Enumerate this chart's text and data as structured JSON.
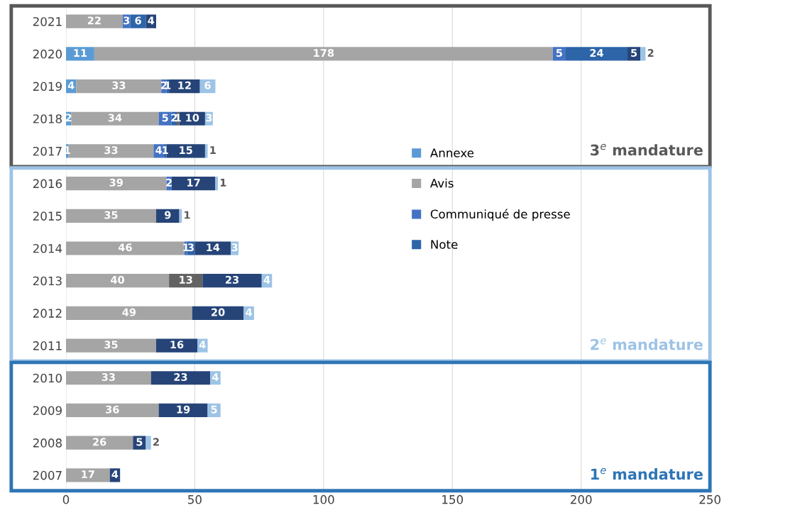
{
  "chart_data": {
    "type": "bar",
    "orientation": "horizontal",
    "stacked": true,
    "data_labels": true,
    "grid": "x",
    "legend": "right",
    "categories": [
      "2021",
      "2020",
      "2019",
      "2018",
      "2017",
      "2016",
      "2015",
      "2014",
      "2013",
      "2012",
      "2011",
      "2010",
      "2009",
      "2008",
      "2007"
    ],
    "series": [
      {
        "name": "Annexe",
        "color": "#5b9bd5",
        "values": [
          null,
          11,
          4,
          2,
          1,
          null,
          null,
          null,
          null,
          null,
          null,
          null,
          null,
          null,
          null
        ]
      },
      {
        "name": "Avis",
        "color": "#a5a5a5",
        "values": [
          22,
          178,
          33,
          34,
          33,
          39,
          35,
          46,
          40,
          49,
          35,
          33,
          36,
          26,
          17
        ]
      },
      {
        "name": "Communiqué de presse",
        "color": "#4472c4",
        "values": [
          3,
          5,
          2,
          5,
          4,
          2,
          null,
          1,
          null,
          null,
          null,
          null,
          null,
          null,
          null
        ]
      },
      {
        "name": "Note",
        "color": "#2e64a8",
        "values": [
          6,
          24,
          1,
          2,
          1,
          null,
          null,
          3,
          null,
          null,
          null,
          null,
          null,
          null,
          null
        ]
      },
      {
        "color": "#636363",
        "values": [
          null,
          null,
          null,
          1,
          null,
          null,
          null,
          null,
          13,
          null,
          null,
          null,
          null,
          null,
          null
        ]
      },
      {
        "color": "#264478",
        "values": [
          4,
          5,
          12,
          10,
          15,
          17,
          9,
          14,
          23,
          20,
          16,
          23,
          19,
          5,
          4
        ]
      },
      {
        "color": "#9dc3e6",
        "values": [
          null,
          2,
          6,
          3,
          1,
          1,
          1,
          3,
          4,
          4,
          4,
          4,
          5,
          2,
          null
        ]
      }
    ],
    "xlim": [
      0,
      250
    ],
    "xticks": [
      0,
      50,
      100,
      150,
      200,
      250
    ],
    "annotations": [
      "3$^{e}$ mandature",
      "2$^{e}$ mandature",
      "1$^{e}$ mandature"
    ]
  }
}
